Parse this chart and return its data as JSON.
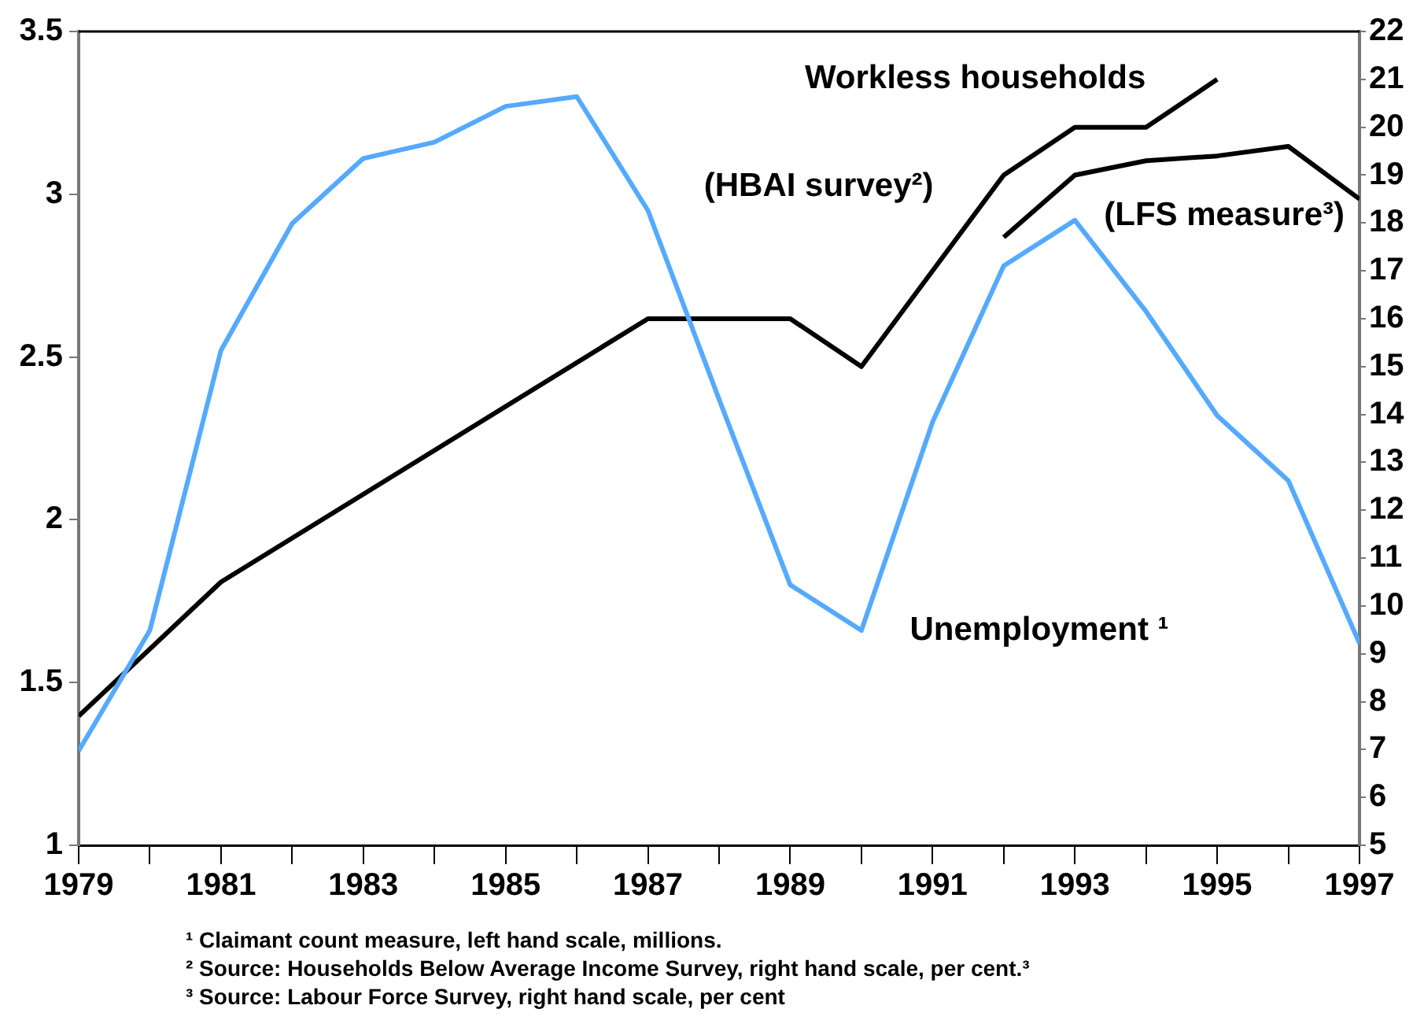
{
  "chart_data": {
    "type": "line",
    "legend": false,
    "grid": false,
    "marker": "none",
    "line_style": "solid",
    "xlim": [
      1979,
      1997
    ],
    "xticks": [
      1979,
      {
        "value": 1980,
        "label": null
      },
      1981,
      {
        "value": 1982,
        "label": null
      },
      1983,
      {
        "value": 1984,
        "label": null
      },
      1985,
      {
        "value": 1986,
        "label": null
      },
      1987,
      {
        "value": 1988,
        "label": null
      },
      1989,
      {
        "value": 1990,
        "label": null
      },
      1991,
      {
        "value": 1992,
        "label": null
      },
      1993,
      {
        "value": 1994,
        "label": null
      },
      1995,
      {
        "value": 1996,
        "label": null
      },
      1997
    ],
    "ylim": [
      1,
      3.5
    ],
    "yticks": [
      1,
      1.5,
      2,
      2.5,
      3,
      3.5
    ],
    "y2lim": [
      5,
      22
    ],
    "y2ticks": [
      5,
      6,
      7,
      8,
      9,
      10,
      11,
      12,
      13,
      14,
      15,
      16,
      17,
      18,
      19,
      20,
      21,
      22
    ],
    "series": [
      {
        "name": "Unemployment ¹",
        "color": "#55aaff",
        "x": [
          1979,
          1980,
          1981,
          1982,
          1983,
          1984,
          1985,
          1986,
          1987,
          1988,
          1989,
          1990,
          1991,
          1992,
          1993,
          1994,
          1995,
          1996,
          1997
        ],
        "values": [
          1.29,
          1.66,
          2.52,
          2.91,
          3.11,
          3.16,
          3.27,
          3.3,
          2.95,
          2.37,
          1.8,
          1.66,
          2.3,
          2.78,
          2.92,
          2.64,
          2.32,
          2.12,
          1.62
        ]
      },
      {
        "name": "(HBAI survey²)",
        "color": "#000000",
        "axis": "y2",
        "x": [
          1979,
          1981,
          1987,
          1988,
          1989,
          1990,
          1992,
          1993,
          1994,
          1995
        ],
        "values": [
          7.7,
          10.5,
          16,
          16,
          16,
          15,
          19,
          20,
          20,
          21
        ]
      },
      {
        "name": "(LFS measure³)",
        "color": "#000000",
        "axis": "y2",
        "x": [
          1992,
          1993,
          1994,
          1995,
          1996,
          1997
        ],
        "values": [
          17.7,
          19,
          19.3,
          19.4,
          19.6,
          18.5
        ]
      }
    ],
    "annotations": [
      "Workless households",
      "¹ Claimant count measure, left hand scale, millions.",
      "² Source: Households Below Average Income Survey, right hand scale, per cent.³",
      "³ Source: Labour Force Survey, right hand scale, per cent"
    ]
  }
}
